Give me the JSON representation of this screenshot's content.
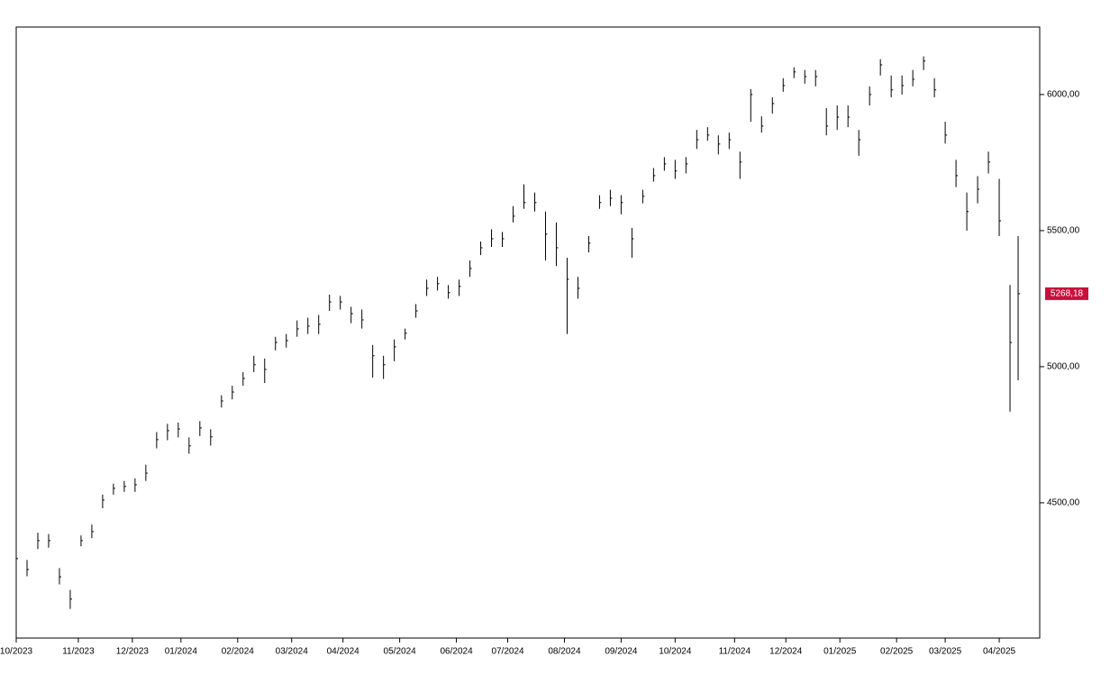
{
  "chart_data": {
    "type": "ohlc",
    "x": [
      0,
      4,
      8,
      12,
      16,
      20,
      24,
      28,
      32,
      36,
      40,
      44,
      48,
      52,
      56,
      60,
      64,
      68,
      72,
      76,
      80,
      84,
      88,
      92,
      96,
      100,
      104,
      108,
      112,
      116,
      120,
      124,
      128,
      132,
      136,
      140,
      144,
      148,
      152,
      156,
      160,
      164,
      168,
      172,
      176,
      180,
      184,
      188,
      192,
      196,
      200,
      204,
      208,
      212,
      216,
      220,
      224,
      228,
      232,
      236,
      240,
      244,
      248,
      252,
      256,
      260,
      264,
      268,
      272,
      276,
      280,
      284,
      288,
      292,
      296,
      300,
      304,
      308,
      312,
      316,
      320,
      324,
      328,
      332,
      336,
      340,
      344,
      348,
      352,
      356,
      360,
      364,
      368,
      371
    ],
    "close": [
      4295,
      4255,
      4361,
      4361,
      4228,
      4146,
      4361,
      4394,
      4510,
      4553,
      4560,
      4566,
      4609,
      4732,
      4765,
      4771,
      4709,
      4775,
      4742,
      4874,
      4907,
      4957,
      5007,
      4990,
      5089,
      5096,
      5139,
      5149,
      5156,
      5238,
      5238,
      5195,
      5172,
      5040,
      5007,
      5073,
      5123,
      5205,
      5288,
      5305,
      5272,
      5295,
      5361,
      5437,
      5470,
      5470,
      5553,
      5603,
      5603,
      5487,
      5437,
      5321,
      5288,
      5454,
      5603,
      5619,
      5603,
      5470,
      5626,
      5702,
      5745,
      5719,
      5745,
      5834,
      5851,
      5818,
      5834,
      5752,
      6000,
      5884,
      5967,
      6033,
      6083,
      6066,
      6066,
      5884,
      5917,
      5917,
      5834,
      6000,
      6109,
      6017,
      6033,
      6056,
      6123,
      6017,
      5851,
      5702,
      5570,
      5652,
      5752,
      5536,
      5089,
      5268.18
    ],
    "high": [
      4320,
      4290,
      4390,
      4385,
      4260,
      4180,
      4380,
      4420,
      4530,
      4570,
      4580,
      4590,
      4640,
      4760,
      4790,
      4795,
      4740,
      4800,
      4770,
      4895,
      4930,
      4980,
      5040,
      5030,
      5110,
      5120,
      5170,
      5180,
      5190,
      5265,
      5260,
      5220,
      5210,
      5080,
      5040,
      5100,
      5140,
      5230,
      5320,
      5330,
      5300,
      5320,
      5390,
      5460,
      5505,
      5495,
      5590,
      5670,
      5640,
      5570,
      5530,
      5400,
      5330,
      5480,
      5630,
      5650,
      5630,
      5510,
      5650,
      5730,
      5770,
      5760,
      5770,
      5870,
      5880,
      5850,
      5860,
      5790,
      6020,
      5920,
      5990,
      6060,
      6100,
      6090,
      6090,
      5950,
      5960,
      5960,
      5870,
      6030,
      6130,
      6070,
      6070,
      6090,
      6140,
      6060,
      5900,
      5760,
      5640,
      5700,
      5790,
      5690,
      5300,
      5480
    ],
    "low": [
      4270,
      4230,
      4330,
      4335,
      4200,
      4110,
      4340,
      4370,
      4480,
      4530,
      4540,
      4540,
      4580,
      4700,
      4730,
      4740,
      4680,
      4745,
      4710,
      4850,
      4880,
      4930,
      4980,
      4940,
      5060,
      5070,
      5110,
      5120,
      5120,
      5205,
      5210,
      5160,
      5140,
      4960,
      4955,
      5020,
      5100,
      5180,
      5260,
      5280,
      5250,
      5260,
      5330,
      5410,
      5440,
      5440,
      5530,
      5580,
      5570,
      5390,
      5370,
      5120,
      5250,
      5420,
      5580,
      5590,
      5560,
      5400,
      5600,
      5680,
      5720,
      5690,
      5710,
      5800,
      5830,
      5780,
      5800,
      5690,
      5900,
      5860,
      5930,
      6010,
      6060,
      6040,
      6030,
      5850,
      5870,
      5880,
      5775,
      5960,
      6070,
      5990,
      6000,
      6030,
      6090,
      5990,
      5820,
      5660,
      5500,
      5600,
      5710,
      5480,
      4835,
      4950
    ],
    "color": "#000000",
    "xlim": [
      0,
      379
    ],
    "xticks": [
      {
        "value": 0,
        "label": "10/2023"
      },
      {
        "value": 23,
        "label": "11/2023"
      },
      {
        "value": 43,
        "label": "12/2023"
      },
      {
        "value": 61,
        "label": "01/2024"
      },
      {
        "value": 82,
        "label": "02/2024"
      },
      {
        "value": 102,
        "label": "03/2024"
      },
      {
        "value": 121,
        "label": "04/2024"
      },
      {
        "value": 142,
        "label": "05/2024"
      },
      {
        "value": 163,
        "label": "06/2024"
      },
      {
        "value": 182,
        "label": "07/2024"
      },
      {
        "value": 203,
        "label": "08/2024"
      },
      {
        "value": 224,
        "label": "09/2024"
      },
      {
        "value": 244,
        "label": "10/2024"
      },
      {
        "value": 266,
        "label": "11/2024"
      },
      {
        "value": 285,
        "label": "12/2024"
      },
      {
        "value": 305,
        "label": "01/2025"
      },
      {
        "value": 326,
        "label": "02/2025"
      },
      {
        "value": 344,
        "label": "03/2025"
      },
      {
        "value": 364,
        "label": "04/2025"
      }
    ],
    "ylim": [
      4003,
      6248
    ],
    "yticks": [
      {
        "value": 4500,
        "label": "4500,00"
      },
      {
        "value": 5000,
        "label": "5000,00"
      },
      {
        "value": 5500,
        "label": "5500,00"
      },
      {
        "value": 6000,
        "label": "6000,00"
      }
    ],
    "last_label": {
      "value": 5268.18,
      "label": "5268,18",
      "color": "#c8103c"
    }
  }
}
